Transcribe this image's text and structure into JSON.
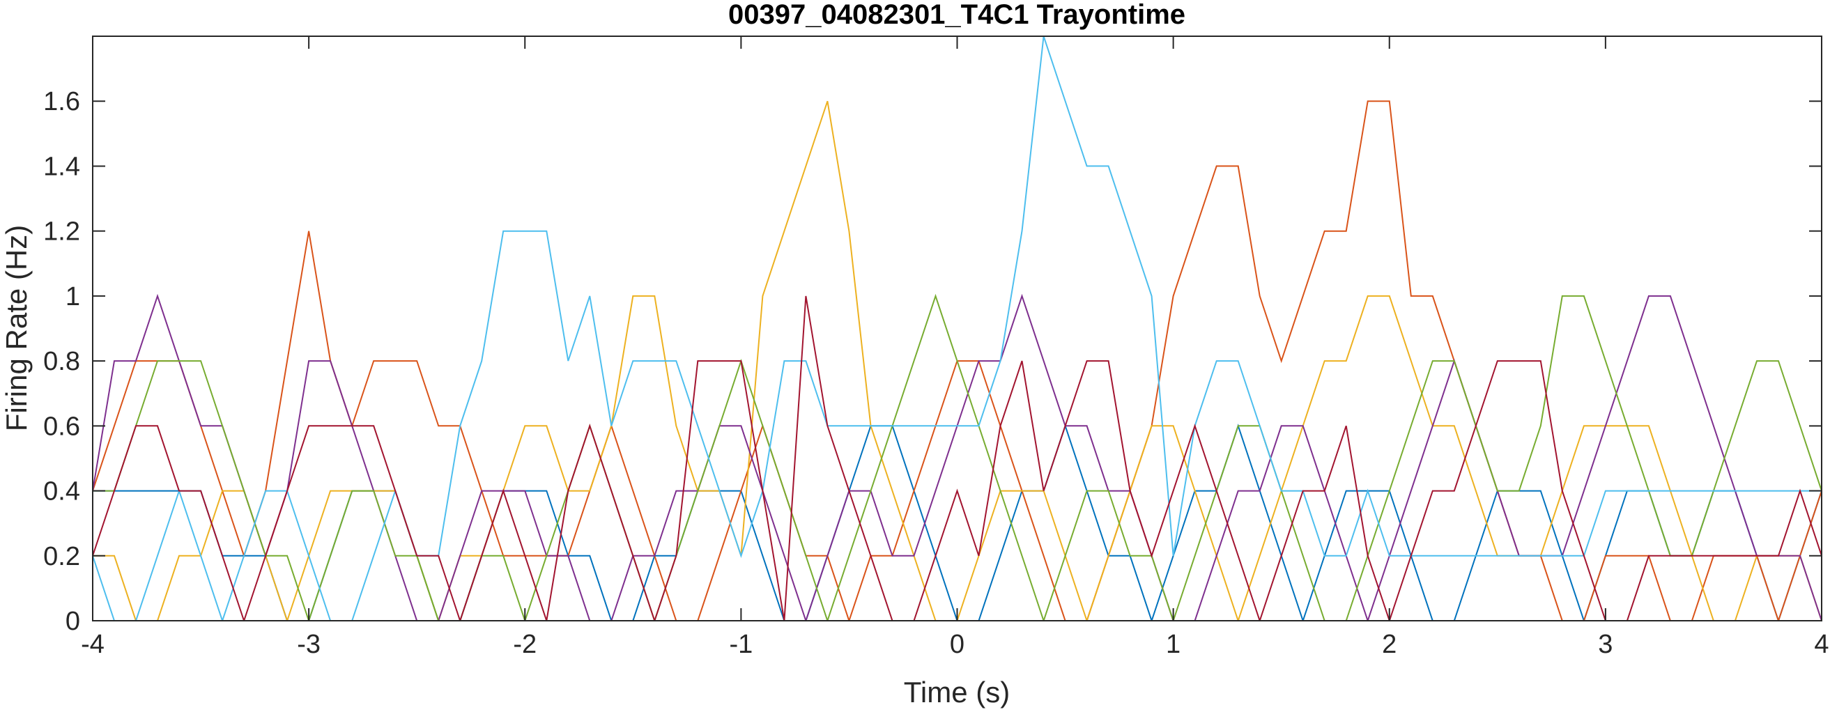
{
  "chart_data": {
    "type": "line",
    "title": "00397_04082301_T4C1 Trayontime",
    "xlabel": "Time (s)",
    "ylabel": "Firing Rate (Hz)",
    "xlim": [
      -4,
      4
    ],
    "ylim": [
      0,
      1.8
    ],
    "xticks": [
      -4,
      -3,
      -2,
      -1,
      0,
      1,
      2,
      3,
      4
    ],
    "xtick_labels": [
      "-4",
      "-3",
      "-2",
      "-1",
      "0",
      "1",
      "2",
      "3",
      "4"
    ],
    "yticks": [
      0,
      0.2,
      0.4,
      0.6,
      0.8,
      1,
      1.2,
      1.4,
      1.6
    ],
    "ytick_labels": [
      "0",
      "0.2",
      "0.4",
      "0.6",
      "0.8",
      "1",
      "1.2",
      "1.4",
      "1.6"
    ],
    "grid": false,
    "legend": "none",
    "x": [
      -4.0,
      -3.9,
      -3.8,
      -3.7,
      -3.6,
      -3.5,
      -3.4,
      -3.3,
      -3.2,
      -3.1,
      -3.0,
      -2.9,
      -2.8,
      -2.7,
      -2.6,
      -2.5,
      -2.4,
      -2.3,
      -2.2,
      -2.1,
      -2.0,
      -1.9,
      -1.8,
      -1.7,
      -1.6,
      -1.5,
      -1.4,
      -1.3,
      -1.2,
      -1.1,
      -1.0,
      -0.9,
      -0.8,
      -0.7,
      -0.6,
      -0.5,
      -0.4,
      -0.3,
      -0.2,
      -0.1,
      0.0,
      0.1,
      0.2,
      0.3,
      0.4,
      0.5,
      0.6,
      0.7,
      0.8,
      0.9,
      1.0,
      1.1,
      1.2,
      1.3,
      1.4,
      1.5,
      1.6,
      1.7,
      1.8,
      1.9,
      2.0,
      2.1,
      2.2,
      2.3,
      2.4,
      2.5,
      2.6,
      2.7,
      2.8,
      2.9,
      3.0,
      3.1,
      3.2,
      3.3,
      3.4,
      3.5,
      3.6,
      3.7,
      3.8,
      3.9,
      4.0
    ],
    "series_colors": [
      "#0072BD",
      "#D95319",
      "#EDB120",
      "#7E2F8E",
      "#77AC30",
      "#4DBEEE",
      "#A2142F"
    ],
    "series": [
      {
        "values": [
          0.4,
          0.4,
          0.4,
          0.4,
          0.4,
          0.4,
          0.2,
          0.2,
          0.2,
          0.0,
          0.0,
          0.2,
          0.4,
          0.4,
          0.4,
          0.2,
          0.0,
          0.0,
          0.2,
          0.4,
          0.4,
          0.4,
          0.2,
          0.2,
          0.0,
          0.0,
          0.2,
          0.2,
          0.4,
          0.4,
          0.4,
          0.2,
          0.0,
          0.0,
          0.2,
          0.4,
          0.6,
          0.6,
          0.4,
          0.2,
          0.0,
          0.0,
          0.2,
          0.4,
          0.4,
          0.6,
          0.4,
          0.2,
          0.2,
          0.0,
          0.2,
          0.4,
          0.4,
          0.6,
          0.4,
          0.2,
          0.0,
          0.2,
          0.4,
          0.4,
          0.4,
          0.2,
          0.0,
          0.0,
          0.2,
          0.4,
          0.4,
          0.4,
          0.2,
          0.0,
          0.2,
          0.4,
          0.4,
          0.2,
          0.2,
          0.4,
          0.4,
          0.2,
          0.0,
          0.2,
          0.4
        ]
      },
      {
        "values": [
          0.4,
          0.6,
          0.8,
          0.8,
          0.8,
          0.6,
          0.4,
          0.2,
          0.4,
          0.8,
          1.2,
          0.8,
          0.6,
          0.8,
          0.8,
          0.8,
          0.6,
          0.6,
          0.4,
          0.2,
          0.2,
          0.2,
          0.2,
          0.4,
          0.6,
          0.4,
          0.2,
          0.0,
          0.0,
          0.2,
          0.4,
          0.6,
          0.4,
          0.2,
          0.2,
          0.0,
          0.2,
          0.2,
          0.4,
          0.6,
          0.8,
          0.8,
          0.6,
          0.4,
          0.2,
          0.0,
          0.0,
          0.2,
          0.4,
          0.6,
          1.0,
          1.2,
          1.4,
          1.4,
          1.0,
          0.8,
          1.0,
          1.2,
          1.2,
          1.6,
          1.6,
          1.0,
          1.0,
          0.8,
          0.6,
          0.4,
          0.2,
          0.2,
          0.0,
          0.0,
          0.2,
          0.2,
          0.2,
          0.0,
          0.0,
          0.2,
          0.2,
          0.2,
          0.0,
          0.2,
          0.4
        ]
      },
      {
        "values": [
          0.2,
          0.2,
          0.0,
          0.0,
          0.2,
          0.2,
          0.4,
          0.4,
          0.2,
          0.0,
          0.2,
          0.4,
          0.4,
          0.4,
          0.4,
          0.2,
          0.0,
          0.2,
          0.2,
          0.4,
          0.6,
          0.6,
          0.4,
          0.4,
          0.6,
          1.0,
          1.0,
          0.6,
          0.4,
          0.4,
          0.2,
          1.0,
          1.2,
          1.4,
          1.6,
          1.2,
          0.6,
          0.4,
          0.2,
          0.0,
          0.0,
          0.2,
          0.4,
          0.4,
          0.4,
          0.2,
          0.0,
          0.2,
          0.4,
          0.6,
          0.6,
          0.4,
          0.2,
          0.0,
          0.2,
          0.4,
          0.6,
          0.8,
          0.8,
          1.0,
          1.0,
          0.8,
          0.6,
          0.6,
          0.4,
          0.2,
          0.2,
          0.2,
          0.4,
          0.6,
          0.6,
          0.6,
          0.6,
          0.4,
          0.2,
          0.0,
          0.0,
          0.2,
          0.2,
          0.2,
          0.0
        ]
      },
      {
        "values": [
          0.4,
          0.8,
          0.8,
          1.0,
          0.8,
          0.6,
          0.6,
          0.4,
          0.2,
          0.4,
          0.8,
          0.8,
          0.6,
          0.4,
          0.2,
          0.0,
          0.0,
          0.2,
          0.4,
          0.4,
          0.4,
          0.2,
          0.2,
          0.0,
          0.0,
          0.2,
          0.2,
          0.4,
          0.4,
          0.6,
          0.6,
          0.4,
          0.2,
          0.0,
          0.2,
          0.4,
          0.4,
          0.2,
          0.2,
          0.4,
          0.6,
          0.8,
          0.8,
          1.0,
          0.8,
          0.6,
          0.6,
          0.4,
          0.4,
          0.2,
          0.0,
          0.0,
          0.2,
          0.4,
          0.4,
          0.6,
          0.6,
          0.4,
          0.2,
          0.0,
          0.2,
          0.4,
          0.6,
          0.8,
          0.6,
          0.4,
          0.2,
          0.2,
          0.2,
          0.4,
          0.6,
          0.8,
          1.0,
          1.0,
          0.8,
          0.6,
          0.4,
          0.2,
          0.2,
          0.2,
          0.0
        ]
      },
      {
        "values": [
          0.4,
          0.4,
          0.6,
          0.8,
          0.8,
          0.8,
          0.6,
          0.4,
          0.2,
          0.2,
          0.0,
          0.2,
          0.4,
          0.4,
          0.2,
          0.2,
          0.0,
          0.0,
          0.2,
          0.2,
          0.0,
          0.2,
          0.4,
          0.6,
          0.4,
          0.2,
          0.0,
          0.2,
          0.4,
          0.6,
          0.8,
          0.6,
          0.4,
          0.2,
          0.0,
          0.2,
          0.4,
          0.6,
          0.8,
          1.0,
          0.8,
          0.6,
          0.4,
          0.2,
          0.0,
          0.2,
          0.4,
          0.4,
          0.2,
          0.2,
          0.0,
          0.2,
          0.4,
          0.6,
          0.6,
          0.4,
          0.2,
          0.0,
          0.0,
          0.2,
          0.4,
          0.6,
          0.8,
          0.8,
          0.6,
          0.4,
          0.4,
          0.6,
          1.0,
          1.0,
          0.8,
          0.6,
          0.4,
          0.2,
          0.2,
          0.4,
          0.6,
          0.8,
          0.8,
          0.6,
          0.4
        ]
      },
      {
        "values": [
          0.2,
          0.0,
          0.0,
          0.2,
          0.4,
          0.2,
          0.0,
          0.2,
          0.4,
          0.4,
          0.2,
          0.0,
          0.0,
          0.2,
          0.4,
          0.2,
          0.2,
          0.6,
          0.8,
          1.2,
          1.2,
          1.2,
          0.8,
          1.0,
          0.6,
          0.8,
          0.8,
          0.8,
          0.6,
          0.4,
          0.2,
          0.4,
          0.8,
          0.8,
          0.6,
          0.6,
          0.6,
          0.6,
          0.6,
          0.6,
          0.6,
          0.6,
          0.8,
          1.2,
          1.8,
          1.6,
          1.4,
          1.4,
          1.2,
          1.0,
          0.2,
          0.6,
          0.8,
          0.8,
          0.6,
          0.4,
          0.4,
          0.2,
          0.2,
          0.4,
          0.2,
          0.2,
          0.2,
          0.2,
          0.2,
          0.2,
          0.2,
          0.2,
          0.2,
          0.2,
          0.4,
          0.4,
          0.4,
          0.4,
          0.4,
          0.4,
          0.4,
          0.4,
          0.4,
          0.4,
          0.4
        ]
      },
      {
        "values": [
          0.2,
          0.4,
          0.6,
          0.6,
          0.4,
          0.4,
          0.2,
          0.0,
          0.2,
          0.4,
          0.6,
          0.6,
          0.6,
          0.6,
          0.4,
          0.2,
          0.2,
          0.0,
          0.2,
          0.4,
          0.2,
          0.0,
          0.4,
          0.6,
          0.4,
          0.2,
          0.0,
          0.2,
          0.8,
          0.8,
          0.8,
          0.4,
          0.0,
          1.0,
          0.6,
          0.4,
          0.2,
          0.0,
          0.0,
          0.2,
          0.4,
          0.2,
          0.6,
          0.8,
          0.4,
          0.6,
          0.8,
          0.8,
          0.4,
          0.2,
          0.4,
          0.6,
          0.4,
          0.2,
          0.0,
          0.2,
          0.4,
          0.4,
          0.6,
          0.2,
          0.0,
          0.2,
          0.4,
          0.4,
          0.6,
          0.8,
          0.8,
          0.8,
          0.4,
          0.2,
          0.0,
          0.0,
          0.2,
          0.2,
          0.2,
          0.2,
          0.2,
          0.2,
          0.2,
          0.4,
          0.2
        ]
      }
    ]
  }
}
